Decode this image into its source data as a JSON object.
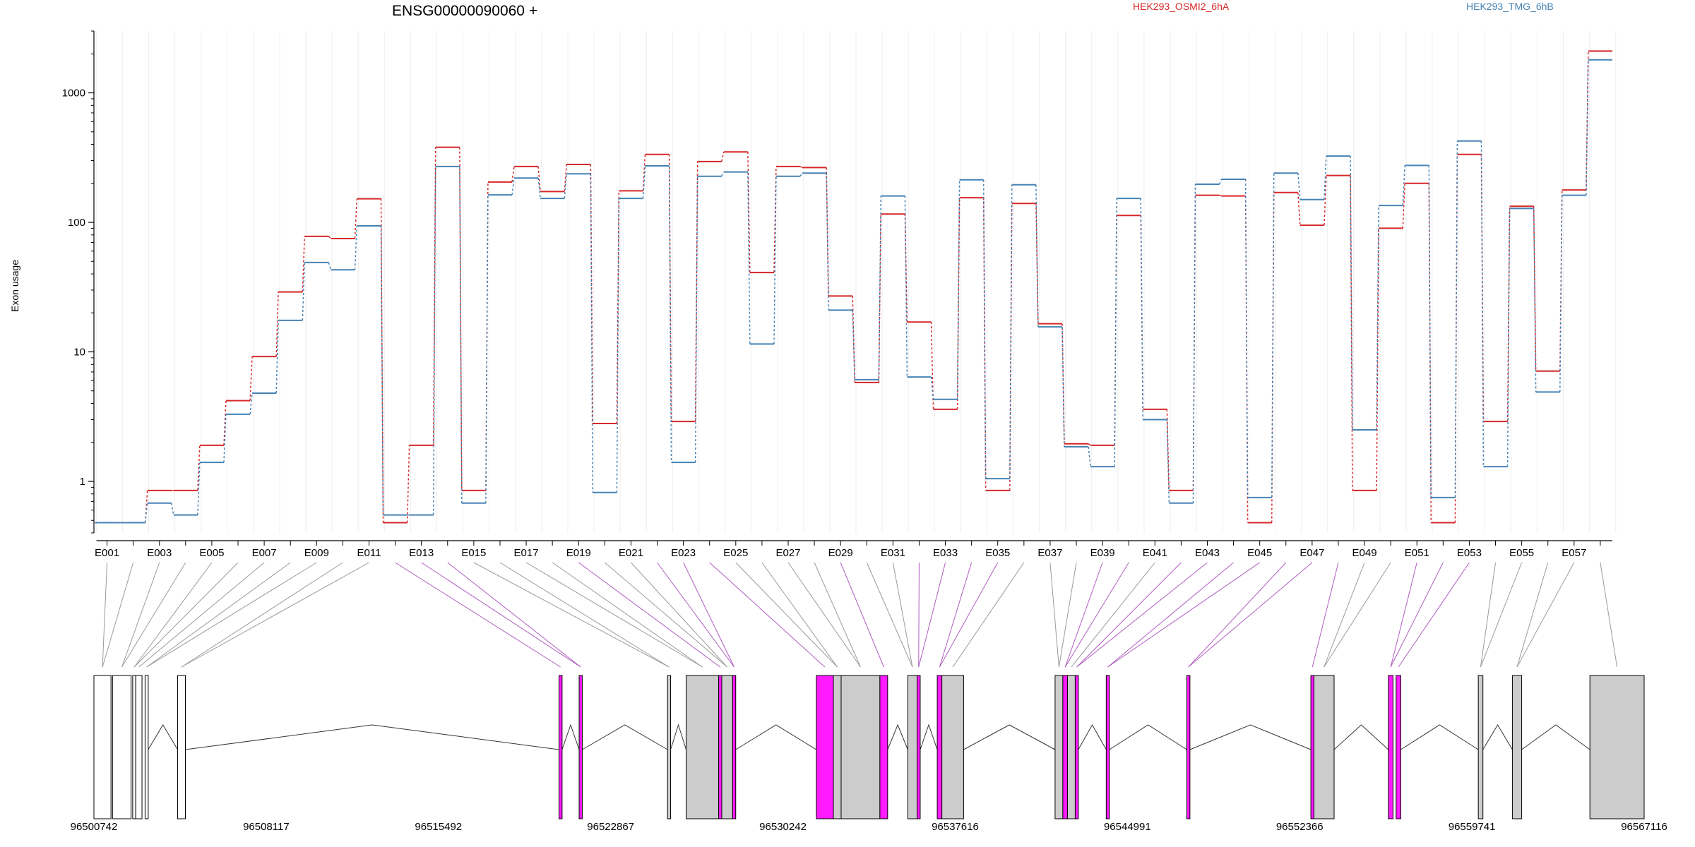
{
  "chart_data": {
    "type": "line",
    "title": "ENSG00000090060 +",
    "ylabel": "Exon usage",
    "xlabel": "",
    "yscale": "log",
    "ylim": [
      0.4,
      3000
    ],
    "yticks": [
      1,
      10,
      100,
      1000
    ],
    "ytick_labels": [
      "1",
      "10",
      "100",
      "1000"
    ],
    "grid": true,
    "legend_placement": "top-right",
    "exons": [
      "E001",
      "E002",
      "E003",
      "E004",
      "E005",
      "E006",
      "E007",
      "E008",
      "E009",
      "E010",
      "E011",
      "E012",
      "E013",
      "E014",
      "E015",
      "E016",
      "E017",
      "E018",
      "E019",
      "E020",
      "E021",
      "E022",
      "E023",
      "E024",
      "E025",
      "E026",
      "E027",
      "E028",
      "E029",
      "E030",
      "E031",
      "E032",
      "E033",
      "E034",
      "E035",
      "E036",
      "E037",
      "E038",
      "E039",
      "E040",
      "E041",
      "E042",
      "E043",
      "E044",
      "E045",
      "E046",
      "E047",
      "E048",
      "E049",
      "E050",
      "E051",
      "E052",
      "E053",
      "E054",
      "E055",
      "E056",
      "E057",
      "E058"
    ],
    "exon_tick_labels": [
      "E001",
      "E003",
      "E005",
      "E007",
      "E009",
      "E011",
      "E013",
      "E015",
      "E017",
      "E019",
      "E021",
      "E023",
      "E025",
      "E027",
      "E029",
      "E031",
      "E033",
      "E035",
      "E037",
      "E039",
      "E041",
      "E043",
      "E045",
      "E047",
      "E049",
      "E051",
      "E053",
      "E055",
      "E057"
    ],
    "series": [
      {
        "name": "HEK293_OSMI2_6hA",
        "color": "#d62728",
        "values": [
          0.48,
          0.48,
          0.85,
          0.85,
          1.9,
          4.2,
          9.2,
          29,
          78,
          75,
          152,
          0.48,
          1.9,
          380,
          0.85,
          205,
          270,
          173,
          280,
          2.8,
          175,
          335,
          2.9,
          295,
          350,
          41,
          270,
          265,
          27,
          5.8,
          116,
          17,
          3.6,
          155,
          0.85,
          140,
          16.5,
          1.95,
          1.9,
          113,
          3.6,
          0.85,
          162,
          160,
          0.48,
          170,
          95,
          230,
          0.85,
          90,
          200,
          0.48,
          335,
          2.9,
          133,
          7.1,
          178,
          2100
        ]
      },
      {
        "name": "HEK293_TMG_6hB",
        "color": "#4682b4",
        "values": [
          0.48,
          0.48,
          0.68,
          0.55,
          1.4,
          3.3,
          4.8,
          17.5,
          49,
          43,
          94,
          0.55,
          0.55,
          270,
          0.68,
          163,
          220,
          153,
          237,
          0.82,
          153,
          273,
          1.4,
          227,
          245,
          11.5,
          227,
          240,
          21,
          6.1,
          160,
          6.4,
          4.3,
          213,
          1.05,
          195,
          15.6,
          1.85,
          1.3,
          153,
          3.0,
          0.68,
          197,
          215,
          0.75,
          240,
          150,
          325,
          2.5,
          135,
          275,
          0.75,
          425,
          1.3,
          128,
          4.9,
          162,
          1800
        ]
      }
    ],
    "genomic_axis": {
      "tick_labels": [
        "96500742",
        "96508117",
        "96515492",
        "96522867",
        "96530242",
        "96537616",
        "96544991",
        "96552366",
        "96559741",
        "96567116"
      ],
      "range": [
        96500742,
        96567116
      ]
    },
    "exon_colors": {
      "significant": "#ff1aff",
      "expressed": "#cccccc",
      "not_expressed": "#ffffff"
    }
  }
}
